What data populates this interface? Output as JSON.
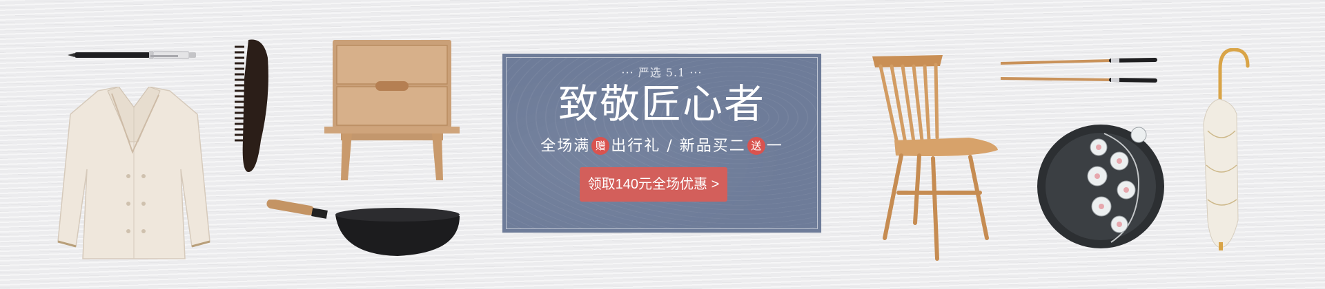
{
  "promo": {
    "kicker": "··· 严选 5.1 ···",
    "headline": "致敬匠心者",
    "sub_part1": "全场满",
    "badge_gift": "赠",
    "sub_part2": "出行礼 / 新品买二",
    "badge_give": "送",
    "sub_part3": "一",
    "cta_label": "领取140元全场优惠 >"
  },
  "products": [
    {
      "name": "pen",
      "icon": "pen-icon"
    },
    {
      "name": "pajama-shirt",
      "icon": "shirt-icon"
    },
    {
      "name": "comb",
      "icon": "comb-icon"
    },
    {
      "name": "nightstand",
      "icon": "nightstand-icon"
    },
    {
      "name": "wok",
      "icon": "wok-icon"
    },
    {
      "name": "chair",
      "icon": "chair-icon"
    },
    {
      "name": "chopsticks",
      "icon": "chopsticks-icon"
    },
    {
      "name": "plate",
      "icon": "plate-icon"
    },
    {
      "name": "umbrella",
      "icon": "umbrella-icon"
    }
  ],
  "colors": {
    "panel": "#6e7c99",
    "cta": "#d35f5b",
    "badge": "#d9534f",
    "background": "#ececee"
  }
}
